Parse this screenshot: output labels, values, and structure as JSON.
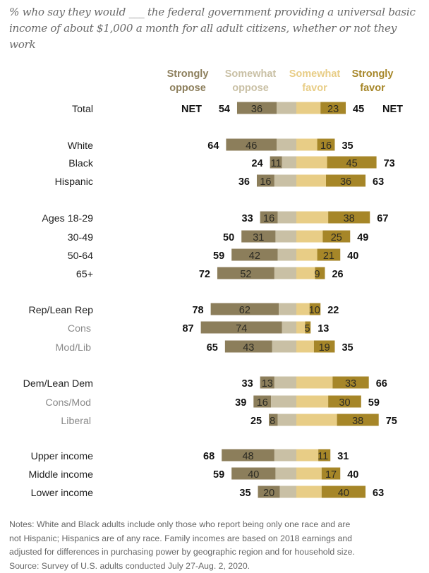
{
  "chart_data": {
    "type": "bar",
    "subtype": "diverging-stacked",
    "title": "% who say they would ___ the federal government providing a universal basic income of about $1,000 a month for all adult citizens, whether or not they work",
    "legend": [
      {
        "name": "Strongly oppose",
        "line1": "Strongly",
        "line2": "oppose",
        "color": "#8c7e5b"
      },
      {
        "name": "Somewhat oppose",
        "line1": "Somewhat",
        "line2": "oppose",
        "color": "#c9c0a5"
      },
      {
        "name": "Somewhat favor",
        "line1": "Somewhat",
        "line2": "favor",
        "color": "#e8cd86"
      },
      {
        "name": "Strongly favor",
        "line1": "Strongly",
        "line2": "favor",
        "color": "#a68628"
      }
    ],
    "net_label": "NET",
    "rows": [
      {
        "label": "Total",
        "sub": false,
        "strongly_oppose": 36,
        "net_oppose": 54,
        "strongly_favor": 23,
        "net_favor": 45
      },
      {
        "label": "White",
        "sub": false,
        "strongly_oppose": 46,
        "net_oppose": 64,
        "strongly_favor": 16,
        "net_favor": 35
      },
      {
        "label": "Black",
        "sub": false,
        "strongly_oppose": 11,
        "net_oppose": 24,
        "strongly_favor": 45,
        "net_favor": 73
      },
      {
        "label": "Hispanic",
        "sub": false,
        "strongly_oppose": 16,
        "net_oppose": 36,
        "strongly_favor": 36,
        "net_favor": 63
      },
      {
        "label": "Ages 18-29",
        "sub": false,
        "strongly_oppose": 16,
        "net_oppose": 33,
        "strongly_favor": 38,
        "net_favor": 67
      },
      {
        "label": "30-49",
        "sub": false,
        "strongly_oppose": 31,
        "net_oppose": 50,
        "strongly_favor": 25,
        "net_favor": 49
      },
      {
        "label": "50-64",
        "sub": false,
        "strongly_oppose": 42,
        "net_oppose": 59,
        "strongly_favor": 21,
        "net_favor": 40
      },
      {
        "label": "65+",
        "sub": false,
        "strongly_oppose": 52,
        "net_oppose": 72,
        "strongly_favor": 9,
        "net_favor": 26
      },
      {
        "label": "Rep/Lean Rep",
        "sub": false,
        "strongly_oppose": 62,
        "net_oppose": 78,
        "strongly_favor": 10,
        "net_favor": 22
      },
      {
        "label": "Cons",
        "sub": true,
        "strongly_oppose": 74,
        "net_oppose": 87,
        "strongly_favor": 5,
        "net_favor": 13
      },
      {
        "label": "Mod/Lib",
        "sub": true,
        "strongly_oppose": 43,
        "net_oppose": 65,
        "strongly_favor": 19,
        "net_favor": 35
      },
      {
        "label": "Dem/Lean Dem",
        "sub": false,
        "strongly_oppose": 13,
        "net_oppose": 33,
        "strongly_favor": 33,
        "net_favor": 66
      },
      {
        "label": "Cons/Mod",
        "sub": true,
        "strongly_oppose": 16,
        "net_oppose": 39,
        "strongly_favor": 30,
        "net_favor": 59
      },
      {
        "label": "Liberal",
        "sub": true,
        "strongly_oppose": 8,
        "net_oppose": 25,
        "strongly_favor": 38,
        "net_favor": 75
      },
      {
        "label": "Upper income",
        "sub": false,
        "strongly_oppose": 48,
        "net_oppose": 68,
        "strongly_favor": 11,
        "net_favor": 31
      },
      {
        "label": "Middle income",
        "sub": false,
        "strongly_oppose": 40,
        "net_oppose": 59,
        "strongly_favor": 17,
        "net_favor": 40
      },
      {
        "label": "Lower income",
        "sub": false,
        "strongly_oppose": 20,
        "net_oppose": 35,
        "strongly_favor": 40,
        "net_favor": 63
      }
    ],
    "notes": [
      "Notes: White and Black adults include only those who report being only one race and are",
      "not Hispanic; Hispanics are of any race. Family incomes are based on 2018 earnings and",
      "adjusted for differences in purchasing power by geographic region and for household size.",
      "Source: Survey of U.S. adults conducted July 27-Aug. 2, 2020."
    ]
  }
}
